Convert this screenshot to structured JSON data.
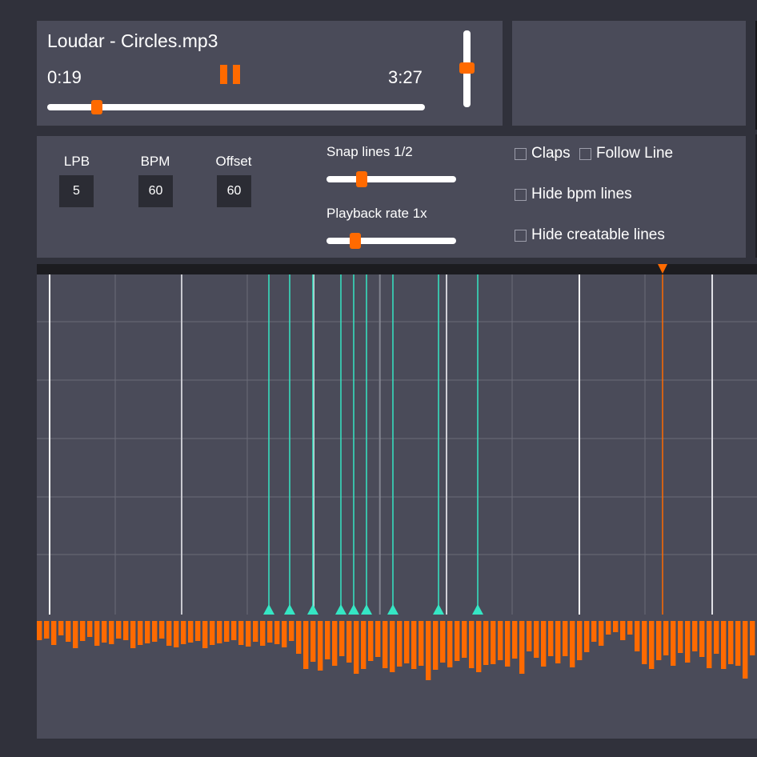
{
  "player": {
    "song_title": "Loudar - Circles.mp3",
    "current_time": "0:19",
    "total_time": "3:27",
    "seek_fraction": 0.1,
    "volume_fraction": 0.5
  },
  "controls": {
    "lpb": {
      "label": "LPB",
      "value": "5"
    },
    "bpm": {
      "label": "BPM",
      "value": "60"
    },
    "offset": {
      "label": "Offset",
      "value": "60"
    },
    "snap_lines": {
      "label": "Snap lines 1/2",
      "fraction": 0.27
    },
    "playback_rate": {
      "label": "Playback rate 1x",
      "fraction": 0.22
    },
    "checkboxes": {
      "claps": {
        "label": "Claps",
        "checked": false
      },
      "follow_line": {
        "label": "Follow Line",
        "checked": false
      },
      "hide_bpm_lines": {
        "label": "Hide bpm lines",
        "checked": false
      },
      "hide_creatable_lines": {
        "label": "Hide creatable lines",
        "checked": false
      }
    }
  },
  "colors": {
    "accent": "#ff6a00",
    "marker": "#35e6c4",
    "panel": "#4a4b59",
    "background": "#30313b"
  },
  "icons": {
    "pause": "pause-icon",
    "playhead": "playhead-marker-icon",
    "marker": "marker-triangle-icon"
  }
}
